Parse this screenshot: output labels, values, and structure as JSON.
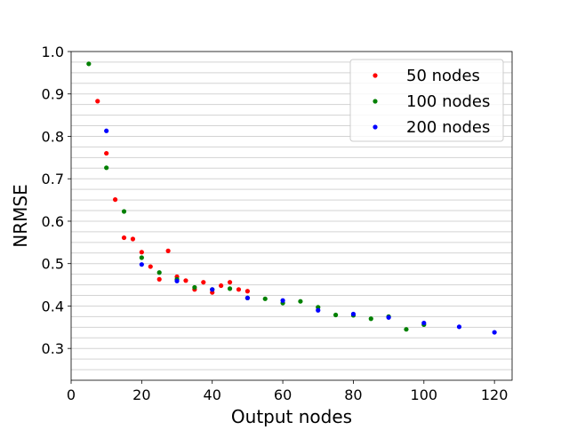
{
  "chart_data": {
    "type": "scatter",
    "title": "",
    "xlabel": "Output nodes",
    "ylabel": "NRMSE",
    "xlim": [
      0,
      125
    ],
    "ylim": [
      0.225,
      1.0
    ],
    "xticks": [
      "0",
      "20",
      "40",
      "60",
      "80",
      "100",
      "120"
    ],
    "yticks": [
      "0.3",
      "0.4",
      "0.5",
      "0.6",
      "0.7",
      "0.8",
      "0.9",
      "1.0"
    ],
    "grid": "horizontal",
    "legend_position": "top-right",
    "series": [
      {
        "name": "50 nodes",
        "color": "#ff0000",
        "x": [
          7.5,
          10,
          12.5,
          15,
          17.5,
          20,
          22.5,
          25,
          27.5,
          30,
          32.5,
          35,
          37.5,
          40,
          42.5,
          45,
          47.5,
          50
        ],
        "y": [
          0.883,
          0.76,
          0.651,
          0.561,
          0.558,
          0.527,
          0.493,
          0.463,
          0.53,
          0.469,
          0.46,
          0.439,
          0.456,
          0.432,
          0.448,
          0.456,
          0.439,
          0.435
        ]
      },
      {
        "name": "100 nodes",
        "color": "#008000",
        "x": [
          5,
          10,
          15,
          20,
          25,
          30,
          35,
          40,
          45,
          50,
          55,
          60,
          65,
          70,
          75,
          80,
          85,
          90,
          95,
          100
        ],
        "y": [
          0.971,
          0.726,
          0.623,
          0.514,
          0.479,
          0.463,
          0.444,
          0.439,
          0.441,
          0.419,
          0.417,
          0.407,
          0.411,
          0.397,
          0.379,
          0.378,
          0.37,
          0.375,
          0.345,
          0.356
        ]
      },
      {
        "name": "200 nodes",
        "color": "#0000ff",
        "x": [
          10,
          20,
          30,
          40,
          50,
          60,
          70,
          80,
          90,
          100,
          110,
          120
        ],
        "y": [
          0.813,
          0.498,
          0.459,
          0.439,
          0.419,
          0.413,
          0.39,
          0.381,
          0.373,
          0.36,
          0.351,
          0.338
        ]
      }
    ]
  }
}
